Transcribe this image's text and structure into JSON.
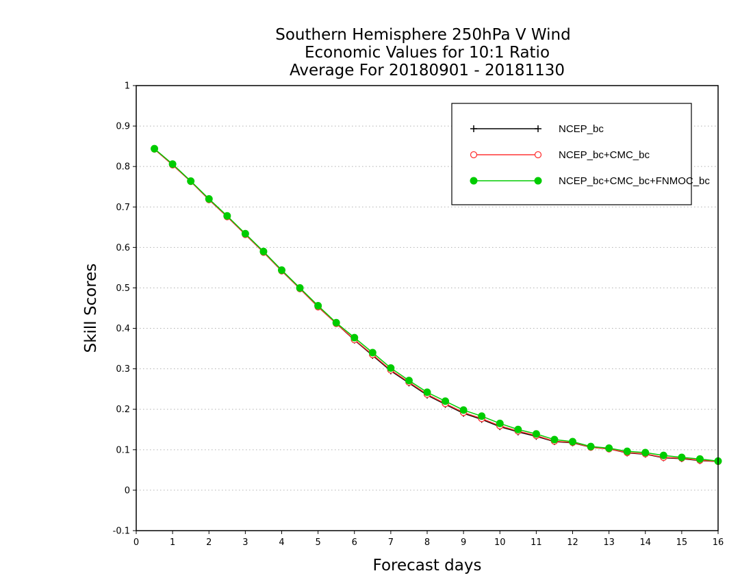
{
  "chart_data": {
    "type": "line",
    "title": [
      "Southern Hemisphere 250hPa V Wind",
      "Economic Values for 10:1 Ratio",
      "Average For 20180901 - 20181130"
    ],
    "xlabel": "Forecast days",
    "ylabel": "Skill Scores",
    "xlim": [
      0,
      16
    ],
    "ylim": [
      -0.1,
      1
    ],
    "xticks": [
      "0",
      "1",
      "2",
      "3",
      "4",
      "5",
      "6",
      "7",
      "8",
      "9",
      "10",
      "11",
      "12",
      "13",
      "14",
      "15",
      "16"
    ],
    "yticks": [
      "-0.1",
      "0",
      "0.1",
      "0.2",
      "0.3",
      "0.4",
      "0.5",
      "0.6",
      "0.7",
      "0.8",
      "0.9",
      "1"
    ],
    "grid": "horizontal-dotted",
    "legend_position": "top-right",
    "x": [
      0.5,
      1,
      1.5,
      2,
      2.5,
      3,
      3.5,
      4,
      4.5,
      5,
      5.5,
      6,
      6.5,
      7,
      7.5,
      8,
      8.5,
      9,
      9.5,
      10,
      10.5,
      11,
      11.5,
      12,
      12.5,
      13,
      13.5,
      14,
      14.5,
      15,
      15.5,
      16
    ],
    "series": [
      {
        "name": "NCEP_bc",
        "color": "#000000",
        "marker": "plus",
        "values": [
          0.843,
          0.804,
          0.763,
          0.718,
          0.676,
          0.632,
          0.588,
          0.542,
          0.498,
          0.453,
          0.412,
          0.371,
          0.333,
          0.295,
          0.265,
          0.235,
          0.212,
          0.19,
          0.175,
          0.157,
          0.144,
          0.133,
          0.12,
          0.117,
          0.106,
          0.102,
          0.092,
          0.089,
          0.08,
          0.078,
          0.073,
          0.071
        ]
      },
      {
        "name": "NCEP_bc+CMC_bc",
        "color": "#ff3333",
        "marker": "open-circle",
        "values": [
          0.843,
          0.804,
          0.763,
          0.718,
          0.676,
          0.632,
          0.588,
          0.542,
          0.498,
          0.453,
          0.412,
          0.372,
          0.335,
          0.297,
          0.267,
          0.237,
          0.214,
          0.192,
          0.177,
          0.159,
          0.146,
          0.135,
          0.121,
          0.118,
          0.106,
          0.102,
          0.093,
          0.09,
          0.081,
          0.079,
          0.074,
          0.071
        ]
      },
      {
        "name": "NCEP_bc+CMC_bc+FNMOC_bc",
        "color": "#00cc00",
        "marker": "filled-circle",
        "values": [
          0.844,
          0.806,
          0.764,
          0.72,
          0.678,
          0.634,
          0.59,
          0.544,
          0.5,
          0.456,
          0.414,
          0.377,
          0.34,
          0.302,
          0.271,
          0.242,
          0.22,
          0.198,
          0.183,
          0.165,
          0.15,
          0.139,
          0.125,
          0.12,
          0.108,
          0.104,
          0.096,
          0.093,
          0.086,
          0.081,
          0.077,
          0.072
        ]
      }
    ]
  }
}
